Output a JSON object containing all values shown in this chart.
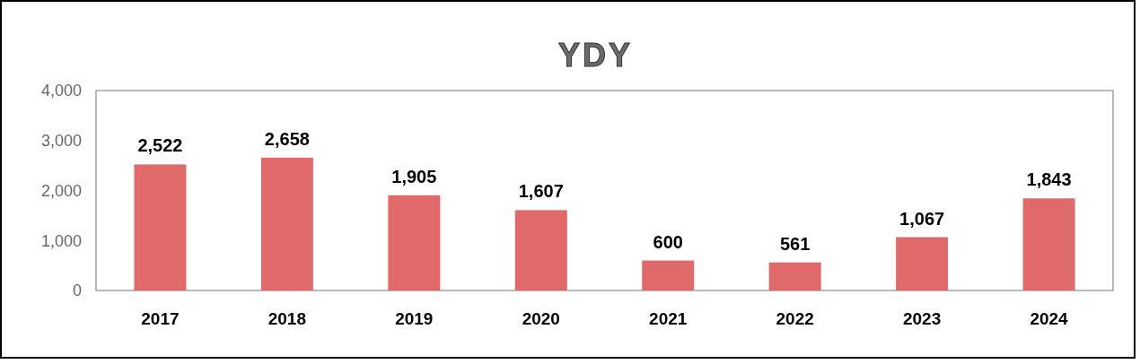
{
  "chart_data": {
    "type": "bar",
    "title": "YDY",
    "categories": [
      "2017",
      "2018",
      "2019",
      "2020",
      "2021",
      "2022",
      "2023",
      "2024"
    ],
    "values": [
      2522,
      2658,
      1905,
      1607,
      600,
      561,
      1067,
      1843
    ],
    "value_labels": [
      "2,522",
      "2,658",
      "1,905",
      "1,607",
      "600",
      "561",
      "1,067",
      "1,843"
    ],
    "color": "#e06a6a",
    "ylim": [
      0,
      4000
    ],
    "yticks": [
      {
        "value": 0,
        "label": "0"
      },
      {
        "value": 1000,
        "label": "1,000"
      },
      {
        "value": 2000,
        "label": "2,000"
      },
      {
        "value": 3000,
        "label": "3,000"
      },
      {
        "value": 4000,
        "label": "4,000"
      }
    ],
    "grid": false
  }
}
